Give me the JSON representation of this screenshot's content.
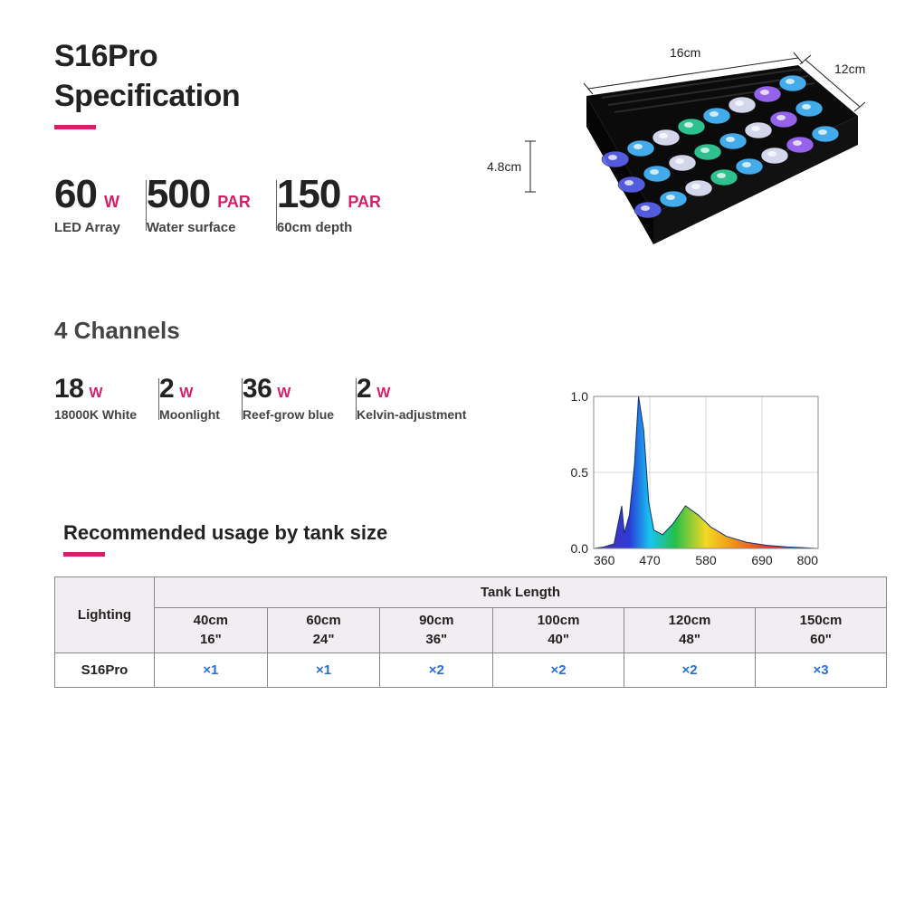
{
  "accent_color": "#d61f69",
  "header": {
    "line1": "S16Pro",
    "line2": "Specification"
  },
  "main_stats": [
    {
      "value": "60",
      "unit": "W",
      "label": "LED Array"
    },
    {
      "value": "500",
      "unit": "PAR",
      "label": "Water surface"
    },
    {
      "value": "150",
      "unit": "PAR",
      "label": "60cm depth"
    }
  ],
  "product_dims": {
    "width": "16cm",
    "depth": "12cm",
    "height": "4.8cm"
  },
  "channels": {
    "title": "4 Channels",
    "items": [
      {
        "value": "18",
        "unit": "W",
        "label": "18000K White"
      },
      {
        "value": "2",
        "unit": "W",
        "label": "Moonlight"
      },
      {
        "value": "36",
        "unit": "W",
        "label": "Reef-grow blue"
      },
      {
        "value": "2",
        "unit": "W",
        "label": "Kelvin-adjustment"
      }
    ]
  },
  "spectrum_chart": {
    "type": "area",
    "xlim": [
      360,
      800
    ],
    "ylim": [
      0,
      1.0
    ],
    "xticks": [
      360,
      470,
      580,
      690,
      800
    ],
    "yticks": [
      0.0,
      0.5,
      1.0
    ],
    "grid_color": "#d9d9d9",
    "border_color": "#888888",
    "background_color": "#ffffff",
    "label_fontsize": 14,
    "curve_points": [
      [
        360,
        0.0
      ],
      [
        380,
        0.01
      ],
      [
        400,
        0.03
      ],
      [
        415,
        0.28
      ],
      [
        420,
        0.1
      ],
      [
        430,
        0.22
      ],
      [
        440,
        0.55
      ],
      [
        448,
        1.0
      ],
      [
        458,
        0.78
      ],
      [
        468,
        0.3
      ],
      [
        478,
        0.12
      ],
      [
        495,
        0.09
      ],
      [
        515,
        0.16
      ],
      [
        540,
        0.28
      ],
      [
        565,
        0.22
      ],
      [
        590,
        0.14
      ],
      [
        620,
        0.08
      ],
      [
        660,
        0.04
      ],
      [
        700,
        0.02
      ],
      [
        740,
        0.01
      ],
      [
        800,
        0.0
      ]
    ],
    "gradient_stops": [
      {
        "x": 360,
        "color": "#5b2ea6"
      },
      {
        "x": 430,
        "color": "#2a3bd6"
      },
      {
        "x": 470,
        "color": "#17c4f2"
      },
      {
        "x": 520,
        "color": "#25c04a"
      },
      {
        "x": 580,
        "color": "#f5d723"
      },
      {
        "x": 640,
        "color": "#f08a18"
      },
      {
        "x": 700,
        "color": "#e23b2e"
      },
      {
        "x": 800,
        "color": "#b32020"
      }
    ]
  },
  "recommended": {
    "title": "Recommended usage by tank size",
    "col_header_main": "Lighting",
    "col_header_span": "Tank Length",
    "sizes": [
      {
        "cm": "40cm",
        "in": "16\""
      },
      {
        "cm": "60cm",
        "in": "24\""
      },
      {
        "cm": "90cm",
        "in": "36\""
      },
      {
        "cm": "100cm",
        "in": "40\""
      },
      {
        "cm": "120cm",
        "in": "48\""
      },
      {
        "cm": "150cm",
        "in": "60\""
      }
    ],
    "row": {
      "label": "S16Pro",
      "values": [
        "×1",
        "×1",
        "×2",
        "×2",
        "×2",
        "×3"
      ]
    },
    "value_color": "#2a6fd6"
  }
}
